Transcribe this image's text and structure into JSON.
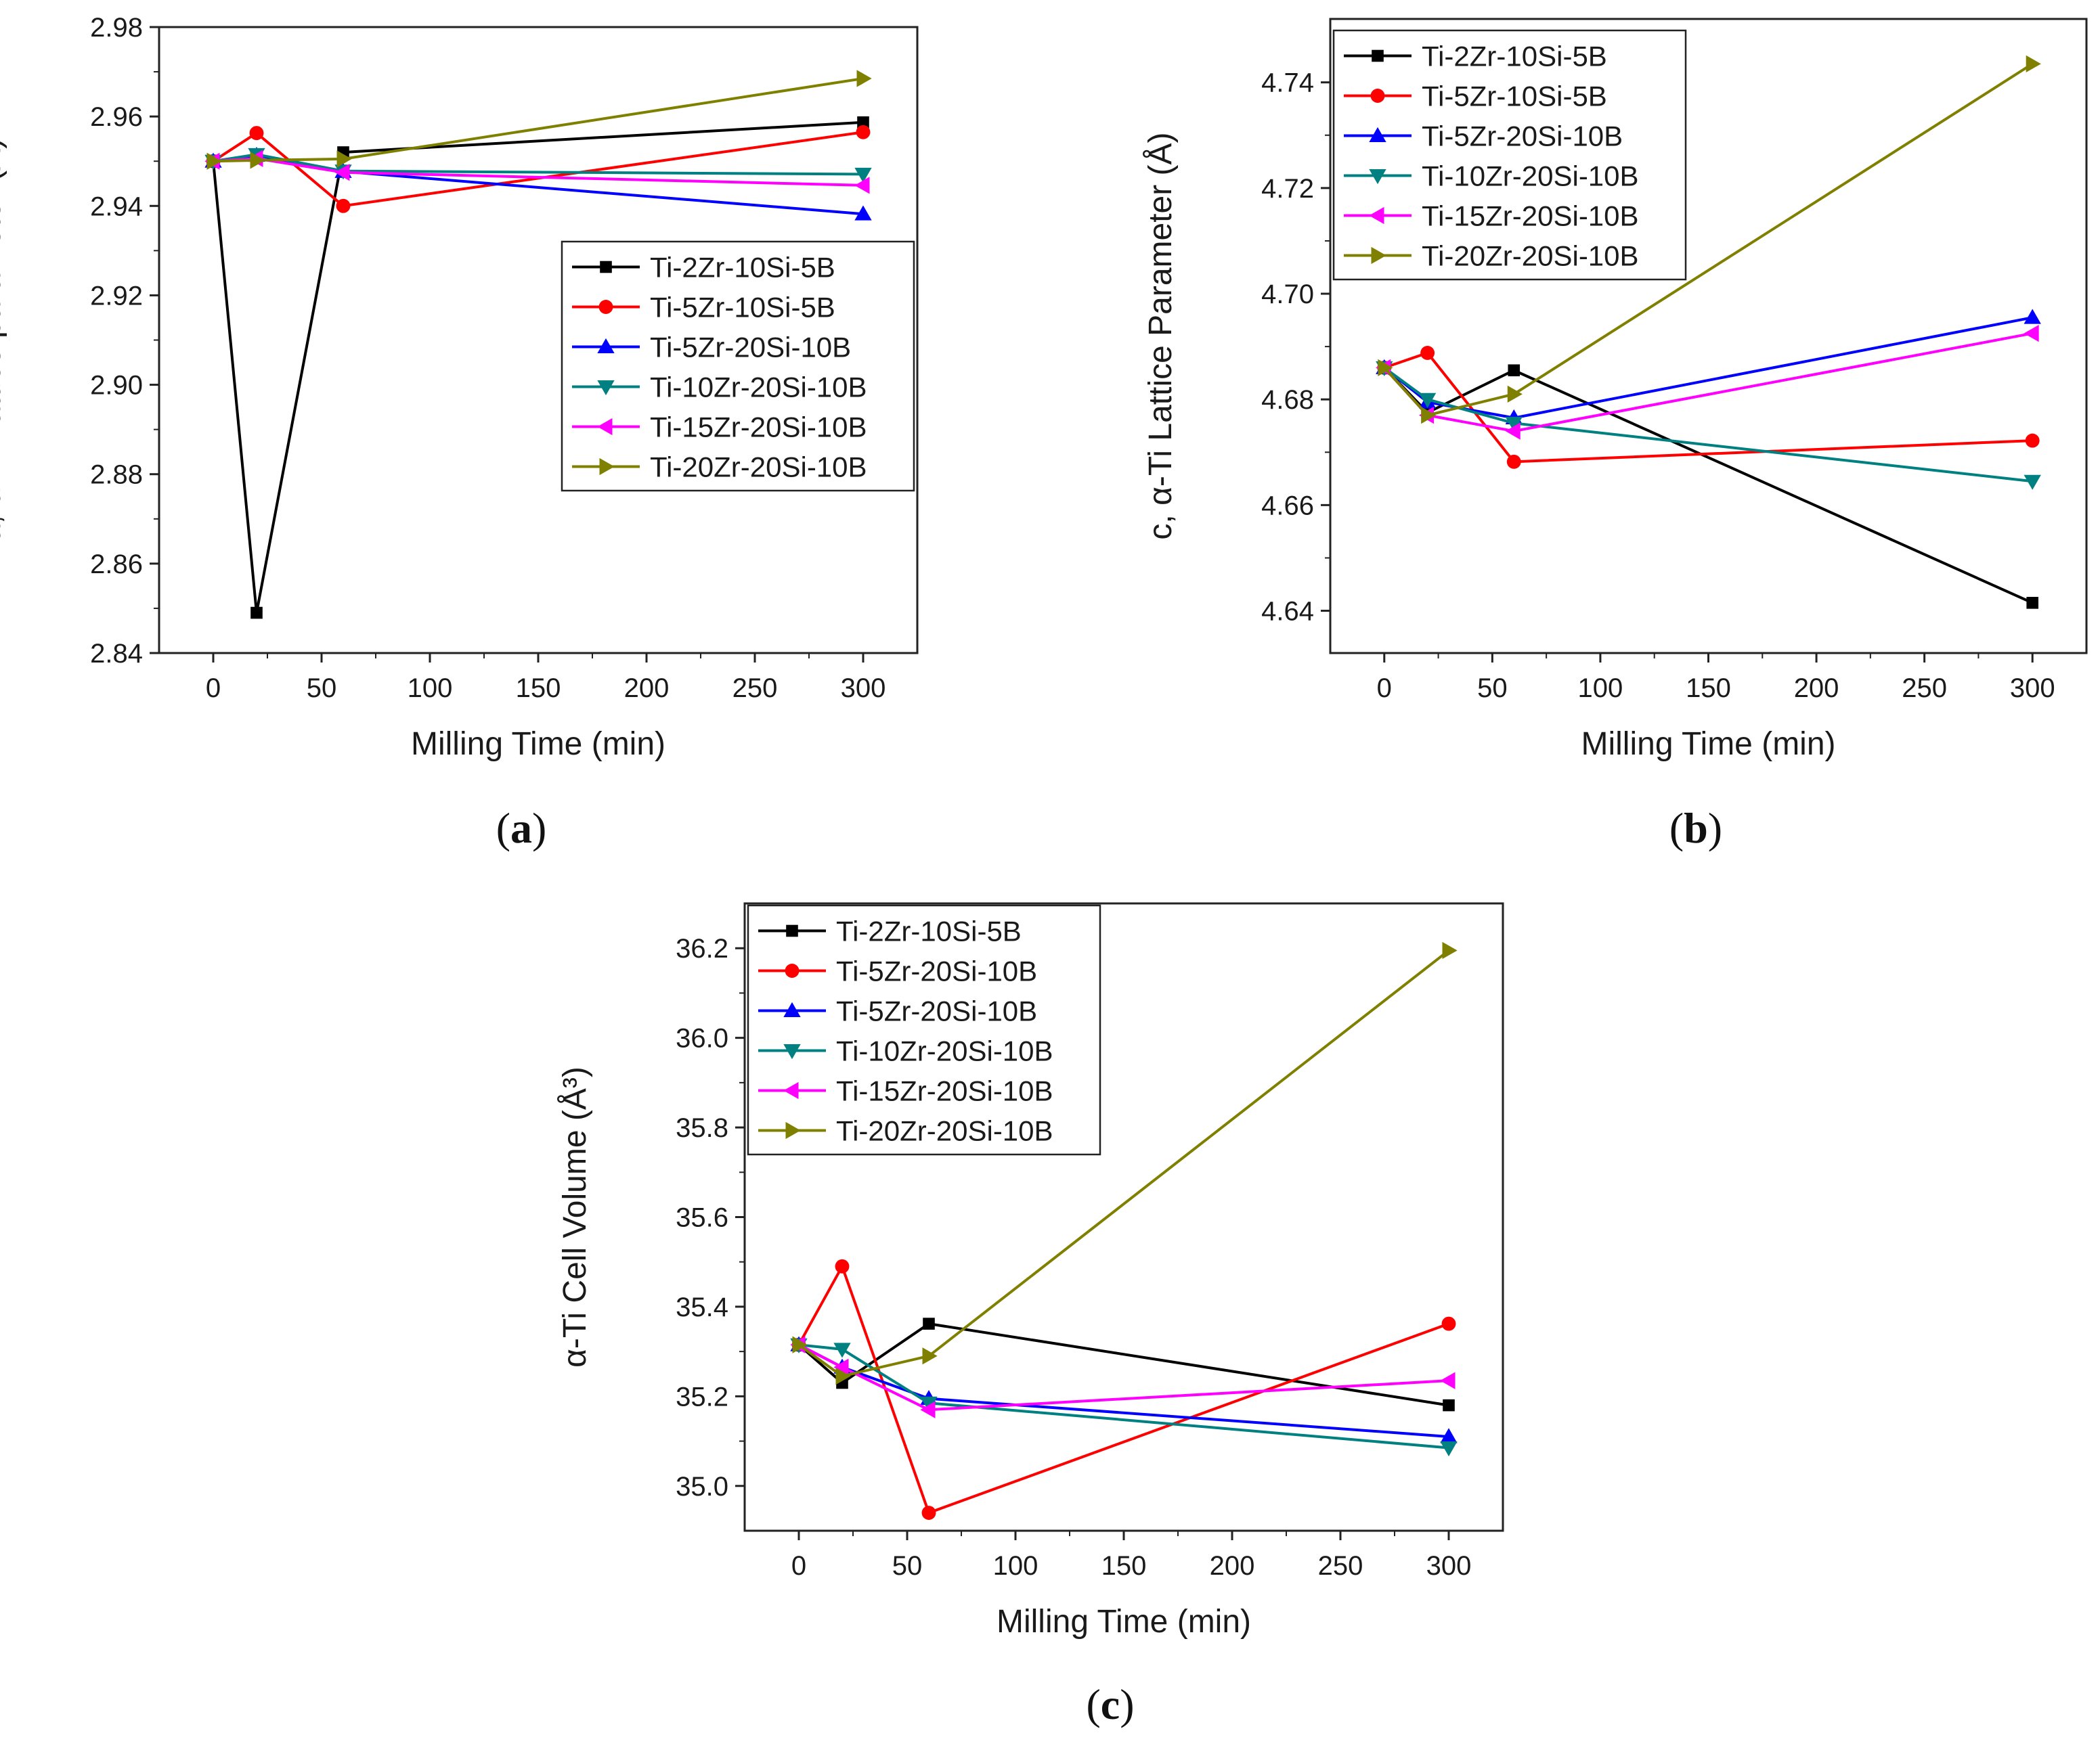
{
  "colors": {
    "black": "#000000",
    "red": "#ff0000",
    "blue": "#0000ff",
    "teal": "#008080",
    "magenta": "#ff00ff",
    "olive": "#808000"
  },
  "chart_data": [
    {
      "panel": "a",
      "caption": "a",
      "type": "line",
      "title": "",
      "xlabel": "Milling Time (min)",
      "ylabel": "a, α−Tι lattice parameter (Å)",
      "xlim": [
        -25,
        325
      ],
      "ylim": [
        2.84,
        2.98
      ],
      "xticks": [
        0,
        50,
        100,
        150,
        200,
        250,
        300
      ],
      "yticks": [
        2.84,
        2.86,
        2.88,
        2.9,
        2.92,
        2.94,
        2.96,
        2.98
      ],
      "ytick_decimals": 2,
      "legend_position": "center-right",
      "series": [
        {
          "name": "Ti-2Zr-10Si-5B",
          "color": "#000000",
          "marker": "square",
          "x": [
            0,
            20,
            60,
            300
          ],
          "y": [
            2.95,
            2.849,
            2.952,
            2.9587
          ]
        },
        {
          "name": "Ti-5Zr-10Si-5B",
          "color": "#ff0000",
          "marker": "circle",
          "x": [
            0,
            20,
            60,
            300
          ],
          "y": [
            2.95,
            2.9563,
            2.94,
            2.9565
          ]
        },
        {
          "name": "Ti-5Zr-20Si-10B",
          "color": "#0000ff",
          "marker": "triangle-up",
          "x": [
            0,
            20,
            60,
            300
          ],
          "y": [
            2.95,
            2.9513,
            2.9477,
            2.9382
          ]
        },
        {
          "name": "Ti-10Zr-20Si-10B",
          "color": "#008080",
          "marker": "triangle-down",
          "x": [
            0,
            20,
            60,
            300
          ],
          "y": [
            2.95,
            2.9515,
            2.9478,
            2.9471
          ]
        },
        {
          "name": "Ti-15Zr-20Si-10B",
          "color": "#ff00ff",
          "marker": "triangle-left",
          "x": [
            0,
            20,
            60,
            300
          ],
          "y": [
            2.95,
            2.9506,
            2.9475,
            2.9446
          ]
        },
        {
          "name": "Ti-20Zr-20Si-10B",
          "color": "#808000",
          "marker": "triangle-right",
          "x": [
            0,
            20,
            60,
            300
          ],
          "y": [
            2.95,
            2.9502,
            2.9505,
            2.9685
          ]
        }
      ]
    },
    {
      "panel": "b",
      "caption": "b",
      "type": "line",
      "title": "",
      "xlabel": "Milling Time (min)",
      "ylabel": "c, α-Ti Lattice Parameter (Å)",
      "xlim": [
        -25,
        325
      ],
      "ylim": [
        4.632,
        4.752
      ],
      "xticks": [
        0,
        50,
        100,
        150,
        200,
        250,
        300
      ],
      "yticks": [
        4.64,
        4.66,
        4.68,
        4.7,
        4.72,
        4.74
      ],
      "ytick_decimals": 2,
      "legend_position": "top-left",
      "series": [
        {
          "name": "Ti-2Zr-10Si-5B",
          "color": "#000000",
          "marker": "square",
          "x": [
            0,
            20,
            60,
            300
          ],
          "y": [
            4.686,
            4.6775,
            4.6855,
            4.6415
          ]
        },
        {
          "name": "Ti-5Zr-10Si-5B",
          "color": "#ff0000",
          "marker": "circle",
          "x": [
            0,
            20,
            60,
            300
          ],
          "y": [
            4.686,
            4.6888,
            4.6682,
            4.6722
          ]
        },
        {
          "name": "Ti-5Zr-20Si-10B",
          "color": "#0000ff",
          "marker": "triangle-up",
          "x": [
            0,
            20,
            60,
            300
          ],
          "y": [
            4.686,
            4.6795,
            4.6765,
            4.6955
          ]
        },
        {
          "name": "Ti-10Zr-20Si-10B",
          "color": "#008080",
          "marker": "triangle-down",
          "x": [
            0,
            20,
            60,
            300
          ],
          "y": [
            4.686,
            4.68,
            4.6755,
            4.6645
          ]
        },
        {
          "name": "Ti-15Zr-20Si-10B",
          "color": "#ff00ff",
          "marker": "triangle-left",
          "x": [
            0,
            20,
            60,
            300
          ],
          "y": [
            4.686,
            4.677,
            4.674,
            4.6925
          ]
        },
        {
          "name": "Ti-20Zr-20Si-10B",
          "color": "#808000",
          "marker": "triangle-right",
          "x": [
            0,
            20,
            60,
            300
          ],
          "y": [
            4.686,
            4.677,
            4.681,
            4.7435
          ]
        }
      ]
    },
    {
      "panel": "c",
      "caption": "c",
      "type": "line",
      "title": "",
      "xlabel": "Milling Time (min)",
      "ylabel": "α-Ti Cell Volume (Å³)",
      "xlim": [
        -25,
        325
      ],
      "ylim": [
        34.9,
        36.3
      ],
      "xticks": [
        0,
        50,
        100,
        150,
        200,
        250,
        300
      ],
      "yticks": [
        35.0,
        35.2,
        35.4,
        35.6,
        35.8,
        36.0,
        36.2
      ],
      "ytick_decimals": 1,
      "legend_position": "top-left",
      "series": [
        {
          "name": "Ti-2Zr-10Si-5B",
          "color": "#000000",
          "marker": "square",
          "x": [
            0,
            20,
            60,
            300
          ],
          "y": [
            35.315,
            35.23,
            35.362,
            35.18
          ]
        },
        {
          "name": "Ti-5Zr-20Si-10B",
          "color": "#ff0000",
          "marker": "circle",
          "x": [
            0,
            20,
            60,
            300
          ],
          "y": [
            35.315,
            35.49,
            34.94,
            35.362
          ]
        },
        {
          "name": "Ti-5Zr-20Si-10B",
          "color": "#0000ff",
          "marker": "triangle-up",
          "x": [
            0,
            20,
            60,
            300
          ],
          "y": [
            35.315,
            35.265,
            35.195,
            35.11
          ]
        },
        {
          "name": "Ti-10Zr-20Si-10B",
          "color": "#008080",
          "marker": "triangle-down",
          "x": [
            0,
            20,
            60,
            300
          ],
          "y": [
            35.315,
            35.305,
            35.185,
            35.085
          ]
        },
        {
          "name": "Ti-15Zr-20Si-10B",
          "color": "#ff00ff",
          "marker": "triangle-left",
          "x": [
            0,
            20,
            60,
            300
          ],
          "y": [
            35.315,
            35.265,
            35.17,
            35.235
          ]
        },
        {
          "name": "Ti-20Zr-20Si-10B",
          "color": "#808000",
          "marker": "triangle-right",
          "x": [
            0,
            20,
            60,
            300
          ],
          "y": [
            35.315,
            35.245,
            35.29,
            36.195
          ]
        }
      ]
    }
  ]
}
